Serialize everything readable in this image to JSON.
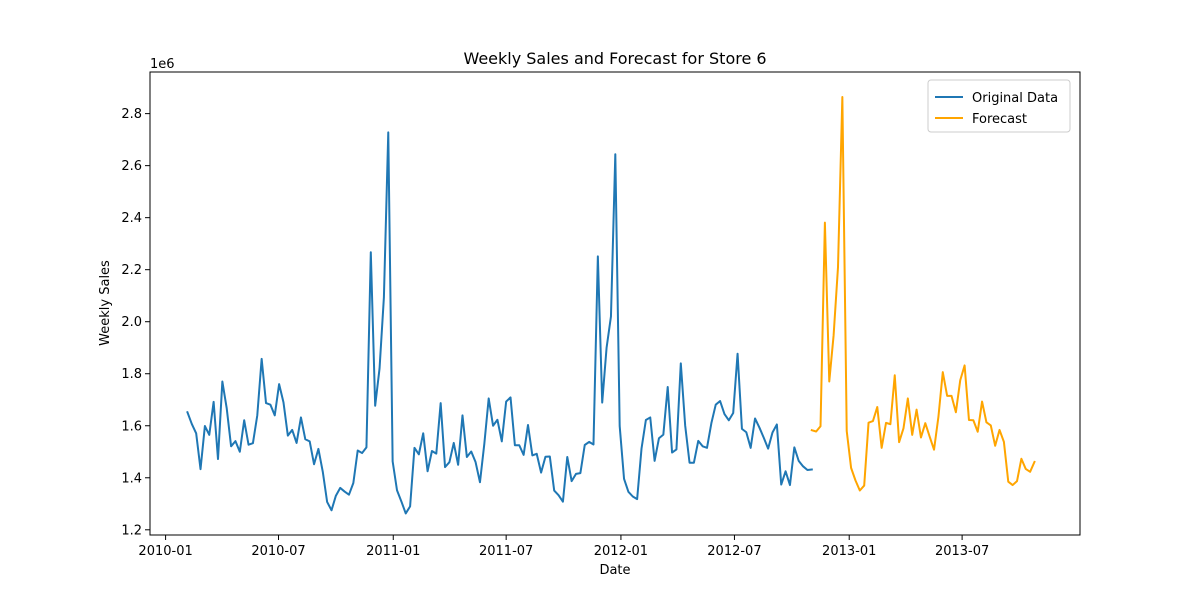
{
  "chart_data": {
    "type": "line",
    "title": "Weekly Sales and Forecast for Store 6",
    "xlabel": "Date",
    "ylabel": "Weekly Sales",
    "y_offset_label": "1e6",
    "xlim": [
      "2009-12-07",
      "2014-01-06"
    ],
    "ylim": [
      1.18,
      2.96
    ],
    "x_ticks": [
      {
        "date": "2010-01-01",
        "label": "2010-01"
      },
      {
        "date": "2010-07-01",
        "label": "2010-07"
      },
      {
        "date": "2011-01-01",
        "label": "2011-01"
      },
      {
        "date": "2011-07-01",
        "label": "2011-07"
      },
      {
        "date": "2012-01-01",
        "label": "2012-01"
      },
      {
        "date": "2012-07-01",
        "label": "2012-07"
      },
      {
        "date": "2013-01-01",
        "label": "2013-01"
      },
      {
        "date": "2013-07-01",
        "label": "2013-07"
      }
    ],
    "y_ticks": [
      {
        "value": 1.2,
        "label": "1.2"
      },
      {
        "value": 1.4,
        "label": "1.4"
      },
      {
        "value": 1.6,
        "label": "1.6"
      },
      {
        "value": 1.8,
        "label": "1.8"
      },
      {
        "value": 2.0,
        "label": "2.0"
      },
      {
        "value": 2.2,
        "label": "2.2"
      },
      {
        "value": 2.4,
        "label": "2.4"
      },
      {
        "value": 2.6,
        "label": "2.6"
      },
      {
        "value": 2.8,
        "label": "2.8"
      }
    ],
    "grid": false,
    "legend": "top-right",
    "series": [
      {
        "name": "Original Data",
        "color": "#1f77b4",
        "start_date": "2010-02-05",
        "interval_days": 7,
        "values": [
          1.652,
          1.607,
          1.571,
          1.433,
          1.599,
          1.565,
          1.692,
          1.472,
          1.77,
          1.667,
          1.521,
          1.541,
          1.5,
          1.621,
          1.527,
          1.533,
          1.64,
          1.857,
          1.687,
          1.681,
          1.64,
          1.76,
          1.69,
          1.562,
          1.584,
          1.534,
          1.632,
          1.548,
          1.54,
          1.452,
          1.511,
          1.423,
          1.307,
          1.275,
          1.331,
          1.361,
          1.347,
          1.335,
          1.38,
          1.505,
          1.495,
          1.517,
          2.267,
          1.677,
          1.82,
          2.094,
          2.728,
          1.463,
          1.352,
          1.309,
          1.263,
          1.29,
          1.515,
          1.49,
          1.571,
          1.425,
          1.503,
          1.493,
          1.687,
          1.441,
          1.46,
          1.534,
          1.45,
          1.64,
          1.48,
          1.501,
          1.46,
          1.383,
          1.531,
          1.705,
          1.6,
          1.623,
          1.54,
          1.693,
          1.709,
          1.525,
          1.525,
          1.488,
          1.603,
          1.486,
          1.492,
          1.42,
          1.481,
          1.482,
          1.351,
          1.333,
          1.308,
          1.48,
          1.387,
          1.415,
          1.418,
          1.526,
          1.538,
          1.528,
          2.251,
          1.689,
          1.9,
          2.02,
          2.644,
          1.599,
          1.396,
          1.346,
          1.328,
          1.318,
          1.512,
          1.622,
          1.632,
          1.465,
          1.552,
          1.566,
          1.749,
          1.497,
          1.509,
          1.84,
          1.601,
          1.458,
          1.458,
          1.542,
          1.521,
          1.515,
          1.61,
          1.681,
          1.695,
          1.645,
          1.621,
          1.649,
          1.877,
          1.588,
          1.575,
          1.515,
          1.628,
          1.593,
          1.554,
          1.512,
          1.574,
          1.605,
          1.374,
          1.425,
          1.372,
          1.517,
          1.465,
          1.444,
          1.43,
          1.432
        ]
      },
      {
        "name": "Forecast",
        "color": "#ffa500",
        "start_date": "2012-11-02",
        "interval_days": 7,
        "values": [
          1.583,
          1.578,
          1.598,
          2.381,
          1.77,
          1.948,
          2.209,
          2.864,
          1.58,
          1.438,
          1.39,
          1.351,
          1.37,
          1.612,
          1.618,
          1.672,
          1.515,
          1.611,
          1.606,
          1.794,
          1.537,
          1.59,
          1.705,
          1.565,
          1.662,
          1.555,
          1.61,
          1.558,
          1.508,
          1.634,
          1.806,
          1.715,
          1.715,
          1.652,
          1.775,
          1.832,
          1.622,
          1.621,
          1.577,
          1.693,
          1.613,
          1.601,
          1.523,
          1.584,
          1.538,
          1.385,
          1.372,
          1.387,
          1.473,
          1.434,
          1.423,
          1.461
        ]
      }
    ]
  }
}
